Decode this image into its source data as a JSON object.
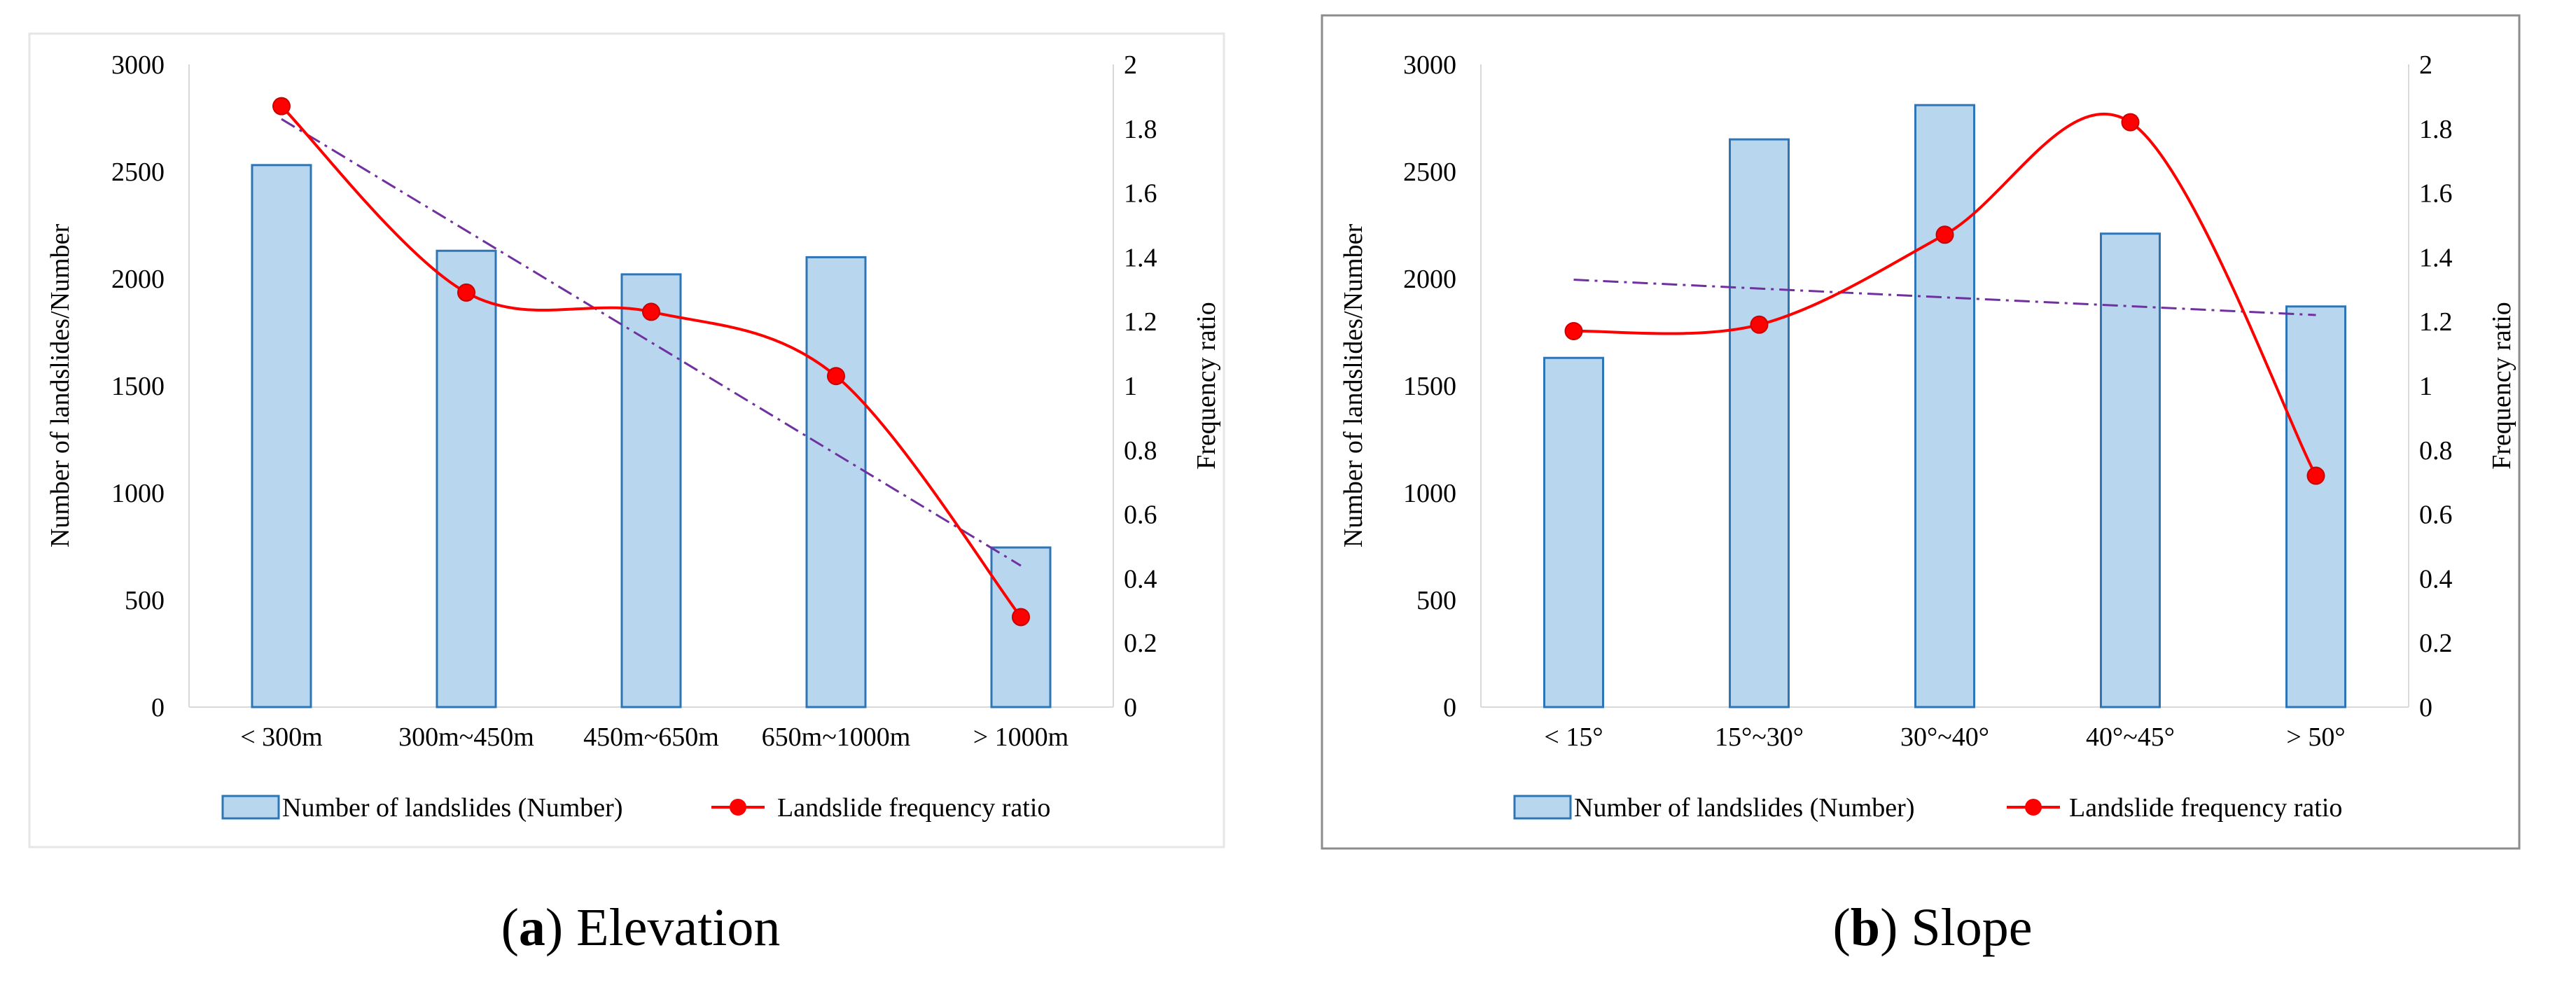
{
  "colors": {
    "bar_fill": "#b8d7ef",
    "bar_stroke": "#2e75b6",
    "line": "#ff0000",
    "trend": "#7030a0",
    "axis_text": "#000000",
    "frame_a": "#e6e6e6",
    "frame_b": "#8c8c8c"
  },
  "chart_data": [
    {
      "type": "bar+line",
      "panel_label": "a",
      "caption": "Elevation",
      "categories": [
        "< 300m",
        "300m~450m",
        "450m~650m",
        "650m~1000m",
        "> 1000m"
      ],
      "series": [
        {
          "name": "Number of landslides (Number)",
          "kind": "bar",
          "axis": "left",
          "values": [
            2530,
            2130,
            2020,
            2100,
            745
          ]
        },
        {
          "name": "Landslide frequency ratio",
          "kind": "line",
          "axis": "right",
          "values": [
            1.87,
            1.29,
            1.23,
            1.03,
            0.28
          ]
        }
      ],
      "trendline": {
        "style": "dash-dot",
        "axis": "right",
        "start": 1.83,
        "end": 0.44
      },
      "ylabel_left": "Number of landslides/Number",
      "ylabel_right": "Frequency ratio",
      "ylim_left": [
        0,
        3000
      ],
      "ylim_right": [
        0,
        2
      ],
      "yticks_left": [
        "0",
        "500",
        "1000",
        "1500",
        "2000",
        "2500",
        "3000"
      ],
      "yticks_right": [
        "0",
        "0.2",
        "0.4",
        "0.6",
        "0.8",
        "1",
        "1.2",
        "1.4",
        "1.6",
        "1.8",
        "2"
      ],
      "legend": {
        "position": "bottom",
        "entries": [
          "Number of landslides (Number)",
          "Landslide frequency ratio"
        ]
      }
    },
    {
      "type": "bar+line",
      "panel_label": "b",
      "caption": "Slope",
      "categories": [
        "< 15°",
        "15°~30°",
        "30°~40°",
        "40°~45°",
        "> 50°"
      ],
      "series": [
        {
          "name": "Number of landslides (Number)",
          "kind": "bar",
          "axis": "left",
          "values": [
            1630,
            2650,
            2810,
            2210,
            1870
          ]
        },
        {
          "name": "Landslide frequency ratio",
          "kind": "line",
          "axis": "right",
          "values": [
            1.17,
            1.19,
            1.47,
            1.82,
            0.72
          ]
        }
      ],
      "trendline": {
        "style": "dash-dot",
        "axis": "right",
        "start": 1.33,
        "end": 1.22
      },
      "ylabel_left": "Number of landslides/Number",
      "ylabel_right": "Frequency ratio",
      "ylim_left": [
        0,
        3000
      ],
      "ylim_right": [
        0,
        2
      ],
      "yticks_left": [
        "0",
        "500",
        "1000",
        "1500",
        "2000",
        "2500",
        "3000"
      ],
      "yticks_right": [
        "0",
        "0.2",
        "0.4",
        "0.6",
        "0.8",
        "1",
        "1.2",
        "1.4",
        "1.6",
        "1.8",
        "2"
      ],
      "legend": {
        "position": "bottom",
        "entries": [
          "Number of landslides (Number)",
          "Landslide frequency ratio"
        ]
      }
    }
  ]
}
